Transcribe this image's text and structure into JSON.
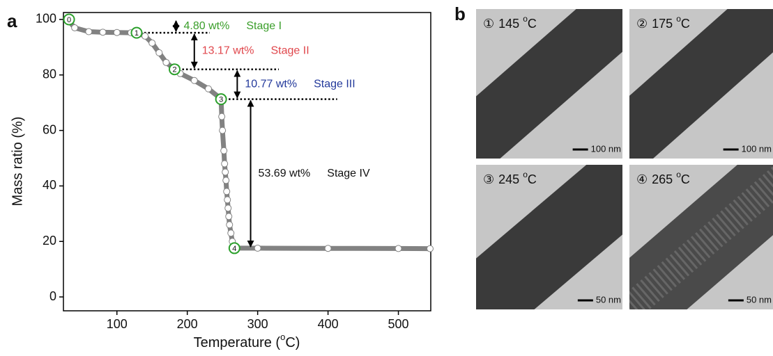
{
  "chart_data": {
    "type": "line",
    "panel_label": "a",
    "xlabel": {
      "before": "Temperature (",
      "sup": "o",
      "after": "C)"
    },
    "ylabel": "Mass ratio (%)",
    "x": [
      30,
      40,
      60,
      80,
      100,
      120,
      128,
      140,
      150,
      160,
      170,
      182,
      190,
      210,
      230,
      245,
      248,
      249,
      250,
      252,
      253,
      254,
      255,
      256,
      257,
      258,
      259,
      260,
      262,
      264,
      267,
      300,
      400,
      500,
      545
    ],
    "values": [
      100,
      97,
      95.6,
      95.4,
      95.3,
      95.2,
      95.2,
      94,
      91.5,
      88,
      84.5,
      82.03,
      80.5,
      78,
      75,
      72,
      71.26,
      65,
      60,
      52.7,
      48,
      45,
      42,
      38,
      35,
      32,
      29,
      26,
      23,
      20,
      17.57,
      17.57,
      17.5,
      17.45,
      17.4
    ],
    "color": "#828282",
    "xlim": [
      24,
      546
    ],
    "ylim": [
      -5,
      102.5
    ],
    "xticks": [
      100,
      200,
      300,
      400,
      500
    ],
    "yticks": [
      0,
      20,
      40,
      60,
      80,
      100
    ],
    "marked_points": [
      {
        "label": "0",
        "x": 32,
        "y": 100
      },
      {
        "label": "1",
        "x": 128,
        "y": 95.2
      },
      {
        "label": "2",
        "x": 182,
        "y": 82.03
      },
      {
        "label": "3",
        "x": 248,
        "y": 71.26
      },
      {
        "label": "4",
        "x": 267,
        "y": 17.57
      }
    ],
    "marker_color": "#2ca02c",
    "levels": [
      {
        "y": 95.2,
        "x": [
          128,
          232
        ]
      },
      {
        "y": 82.03,
        "x": [
          182,
          330
        ]
      },
      {
        "y": 71.26,
        "x": [
          248,
          413
        ]
      }
    ],
    "stages": [
      {
        "value_label": "4.80 wt%",
        "name": "Stage I",
        "color": "#3a9e2a",
        "x": 184,
        "from": 100,
        "to": 95.2
      },
      {
        "value_label": "13.17 wt%",
        "name": "Stage II",
        "color": "#e0474c",
        "x": 210,
        "from": 95.2,
        "to": 82.03
      },
      {
        "value_label": "10.77 wt%",
        "name": "Stage III",
        "color": "#23399b",
        "x": 271,
        "from": 82.03,
        "to": 71.26
      },
      {
        "value_label": "53.69 wt%",
        "name": "Stage IV",
        "color": "#111111",
        "x": 290,
        "from": 71.26,
        "to": 17.57
      }
    ]
  },
  "panel_b": {
    "label": "b",
    "images": [
      {
        "marker": "①",
        "temperature": "145",
        "unit_sup": "o",
        "unit": "C",
        "scale_bar": "100 nm"
      },
      {
        "marker": "②",
        "temperature": "175",
        "unit_sup": "o",
        "unit": "C",
        "scale_bar": "100 nm"
      },
      {
        "marker": "③",
        "temperature": "245",
        "unit_sup": "o",
        "unit": "C",
        "scale_bar": "50 nm"
      },
      {
        "marker": "④",
        "temperature": "265",
        "unit_sup": "o",
        "unit": "C",
        "scale_bar": "50 nm"
      }
    ]
  }
}
